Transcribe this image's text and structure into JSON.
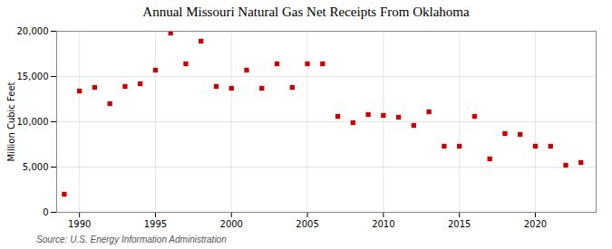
{
  "chart_data": {
    "type": "scatter",
    "title": "Annual Missouri Natural Gas Net Receipts From Oklahoma",
    "ylabel": "Million Cubic Feet",
    "source": "Source: U.S. Energy Information Administration",
    "x": [
      1989,
      1990,
      1991,
      1992,
      1993,
      1994,
      1995,
      1996,
      1997,
      1998,
      1999,
      2000,
      2001,
      2002,
      2003,
      2004,
      2005,
      2006,
      2007,
      2008,
      2009,
      2010,
      2011,
      2012,
      2013,
      2014,
      2015,
      2016,
      2017,
      2018,
      2019,
      2020,
      2021,
      2022,
      2023
    ],
    "values": [
      2000,
      13400,
      13800,
      12000,
      13900,
      14200,
      15700,
      19800,
      16400,
      18900,
      13900,
      13700,
      15700,
      13700,
      16400,
      13800,
      16400,
      16400,
      10600,
      9900,
      10800,
      10700,
      10500,
      9600,
      11100,
      7300,
      7300,
      10600,
      5900,
      8700,
      8600,
      7300,
      7300,
      5200,
      5500
    ],
    "color": "#cc0000",
    "marker": "square",
    "xlim": [
      1988.5,
      2024
    ],
    "ylim": [
      0,
      20000
    ],
    "xticks": [
      1990,
      1995,
      2000,
      2005,
      2010,
      2015,
      2020
    ],
    "yticks": [
      0,
      {
        "value": 5000,
        "label": "5,000"
      },
      {
        "value": 10000,
        "label": "10,000"
      },
      {
        "value": 15000,
        "label": "15,000"
      },
      {
        "value": 20000,
        "label": "20,000"
      }
    ],
    "grid": true
  }
}
